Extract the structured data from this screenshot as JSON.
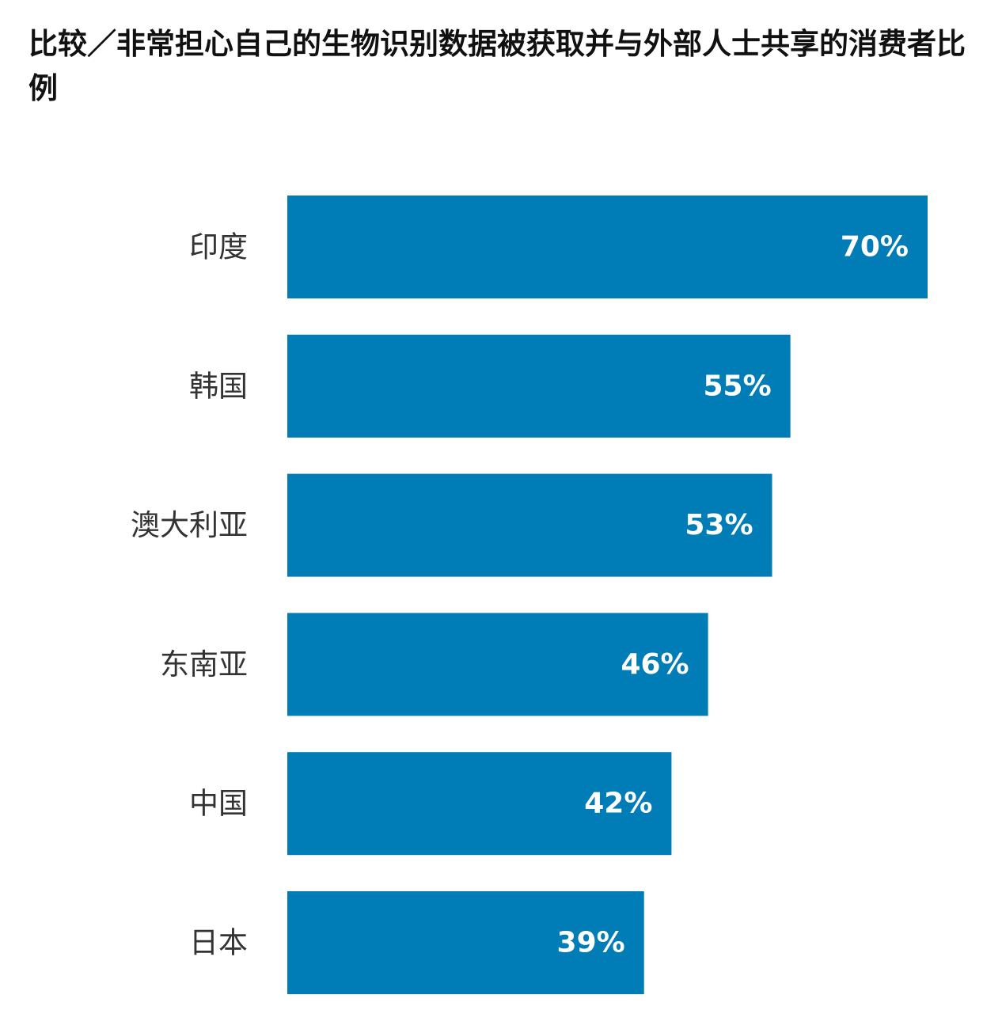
{
  "colors": {
    "bar": "#007cb6",
    "value_text": "#ffffff",
    "category_text": "#333333",
    "title_text": "#111111"
  },
  "chart_data": {
    "type": "bar",
    "orientation": "horizontal",
    "title": "比较／非常担心自己的生物识别数据被获取并与外部人士共享的消费者比例",
    "categories": [
      "印度",
      "韩国",
      "澳大利亚",
      "东南亚",
      "中国",
      "日本"
    ],
    "values": [
      70,
      55,
      53,
      46,
      42,
      39
    ],
    "value_labels": [
      "70%",
      "55%",
      "53%",
      "46%",
      "42%",
      "39%"
    ],
    "xlim": [
      0,
      70
    ],
    "grid": false,
    "legend": "none"
  }
}
